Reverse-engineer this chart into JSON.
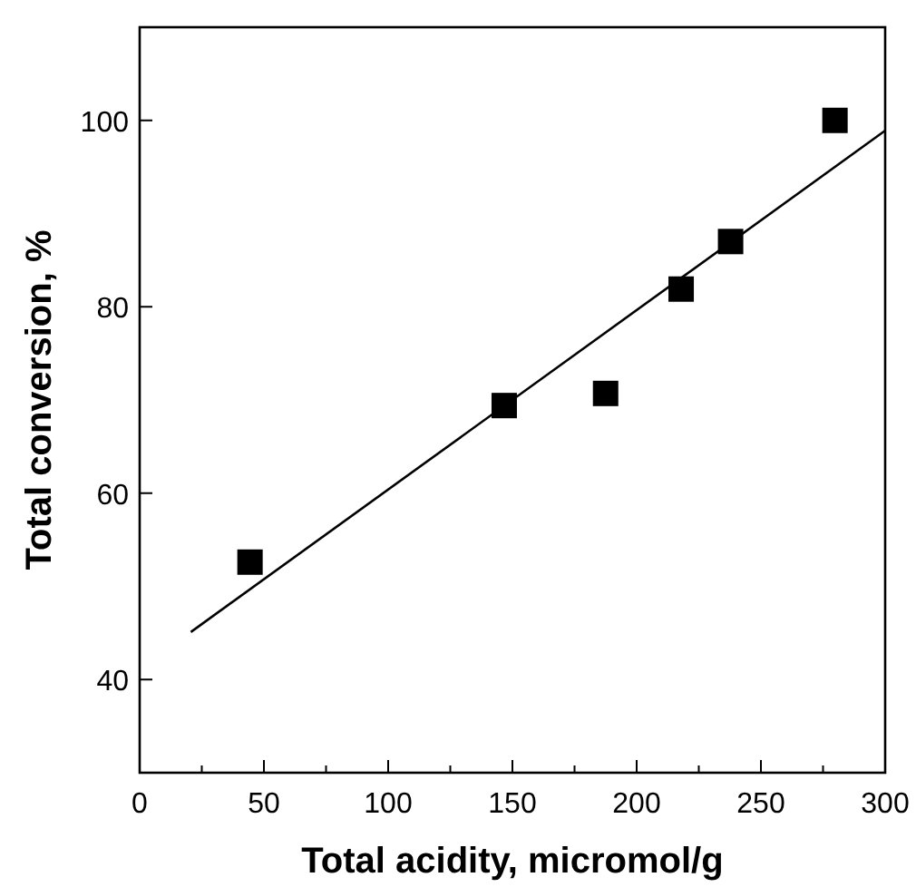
{
  "chart_data": {
    "type": "scatter",
    "xlabel": "Total acidity, micromol/g",
    "ylabel": "Total conversion, %",
    "xlim": [
      0,
      300
    ],
    "ylim": [
      30,
      110
    ],
    "xticks": [
      0,
      {
        "value": 25,
        "label": null
      },
      50,
      {
        "value": 75,
        "label": null
      },
      100,
      {
        "value": 125,
        "label": null
      },
      150,
      {
        "value": 175,
        "label": null
      },
      200,
      {
        "value": 225,
        "label": null
      },
      250,
      {
        "value": 275,
        "label": null
      },
      300
    ],
    "yticks": [
      40,
      60,
      80,
      100
    ],
    "marker": "square",
    "grid": false,
    "series": [
      {
        "color": "#000000",
        "x": [
          44.4,
          146.7,
          187.5,
          217.9,
          237.8,
          279.8
        ],
        "values": [
          52.6,
          69.4,
          70.7,
          81.9,
          87.0,
          100
        ]
      },
      {
        "type": "line",
        "color": "#000000",
        "marker": "none",
        "x": [
          20.6,
          300
        ],
        "values": [
          45.1,
          98.9
        ]
      }
    ]
  }
}
